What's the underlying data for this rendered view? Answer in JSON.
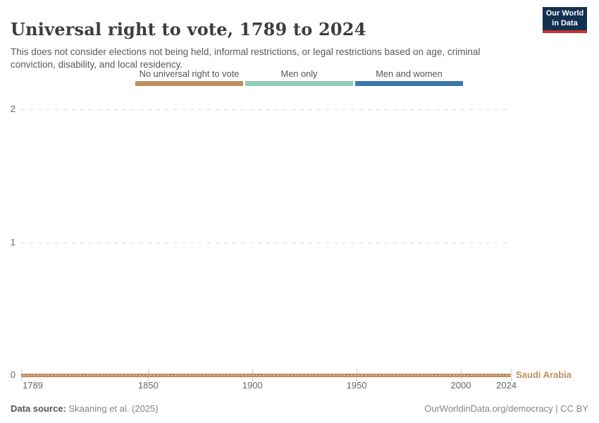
{
  "header": {
    "title": "Universal right to vote, 1789 to 2024",
    "subtitle": "This does not consider elections not being held, informal restrictions, or legal restrictions based on age, criminal conviction, disability, and local residency.",
    "logo": {
      "line1": "Our World",
      "line2": "in Data",
      "bg_color": "#12304F",
      "accent_color": "#CE332E"
    }
  },
  "chart_data": {
    "type": "line",
    "title": "Universal right to vote, 1789 to 2024",
    "xlabel": "",
    "ylabel": "",
    "x_range": [
      1789,
      2024
    ],
    "y_range": [
      0,
      2
    ],
    "grid": true,
    "legend_position": "top",
    "x_ticks": [
      {
        "value": 1789,
        "label": "1789"
      },
      {
        "value": 1850,
        "label": "1850"
      },
      {
        "value": 1900,
        "label": "1900"
      },
      {
        "value": 1950,
        "label": "1950"
      },
      {
        "value": 2000,
        "label": "2000"
      },
      {
        "value": 2024,
        "label": "2024"
      }
    ],
    "y_ticks": [
      {
        "value": 0,
        "label": "0"
      },
      {
        "value": 1,
        "label": "1"
      },
      {
        "value": 2,
        "label": "2"
      }
    ],
    "value_legend": [
      {
        "label": "No universal right to vote",
        "value": 0,
        "color": "#BE8E5E"
      },
      {
        "label": "Men only",
        "value": 1,
        "color": "#8FCBB0"
      },
      {
        "label": "Men and women",
        "value": 2,
        "color": "#3B78AD"
      }
    ],
    "series": [
      {
        "name": "Saudi Arabia",
        "color": "#BE8E5E",
        "points": [
          {
            "x": 1789,
            "y": 0
          },
          {
            "x": 2024,
            "y": 0
          }
        ]
      }
    ]
  },
  "footer": {
    "source_label": "Data source:",
    "source_value": "Skaaning et al. (2025)",
    "right_text": "OurWorldinData.org/democracy | CC BY"
  }
}
